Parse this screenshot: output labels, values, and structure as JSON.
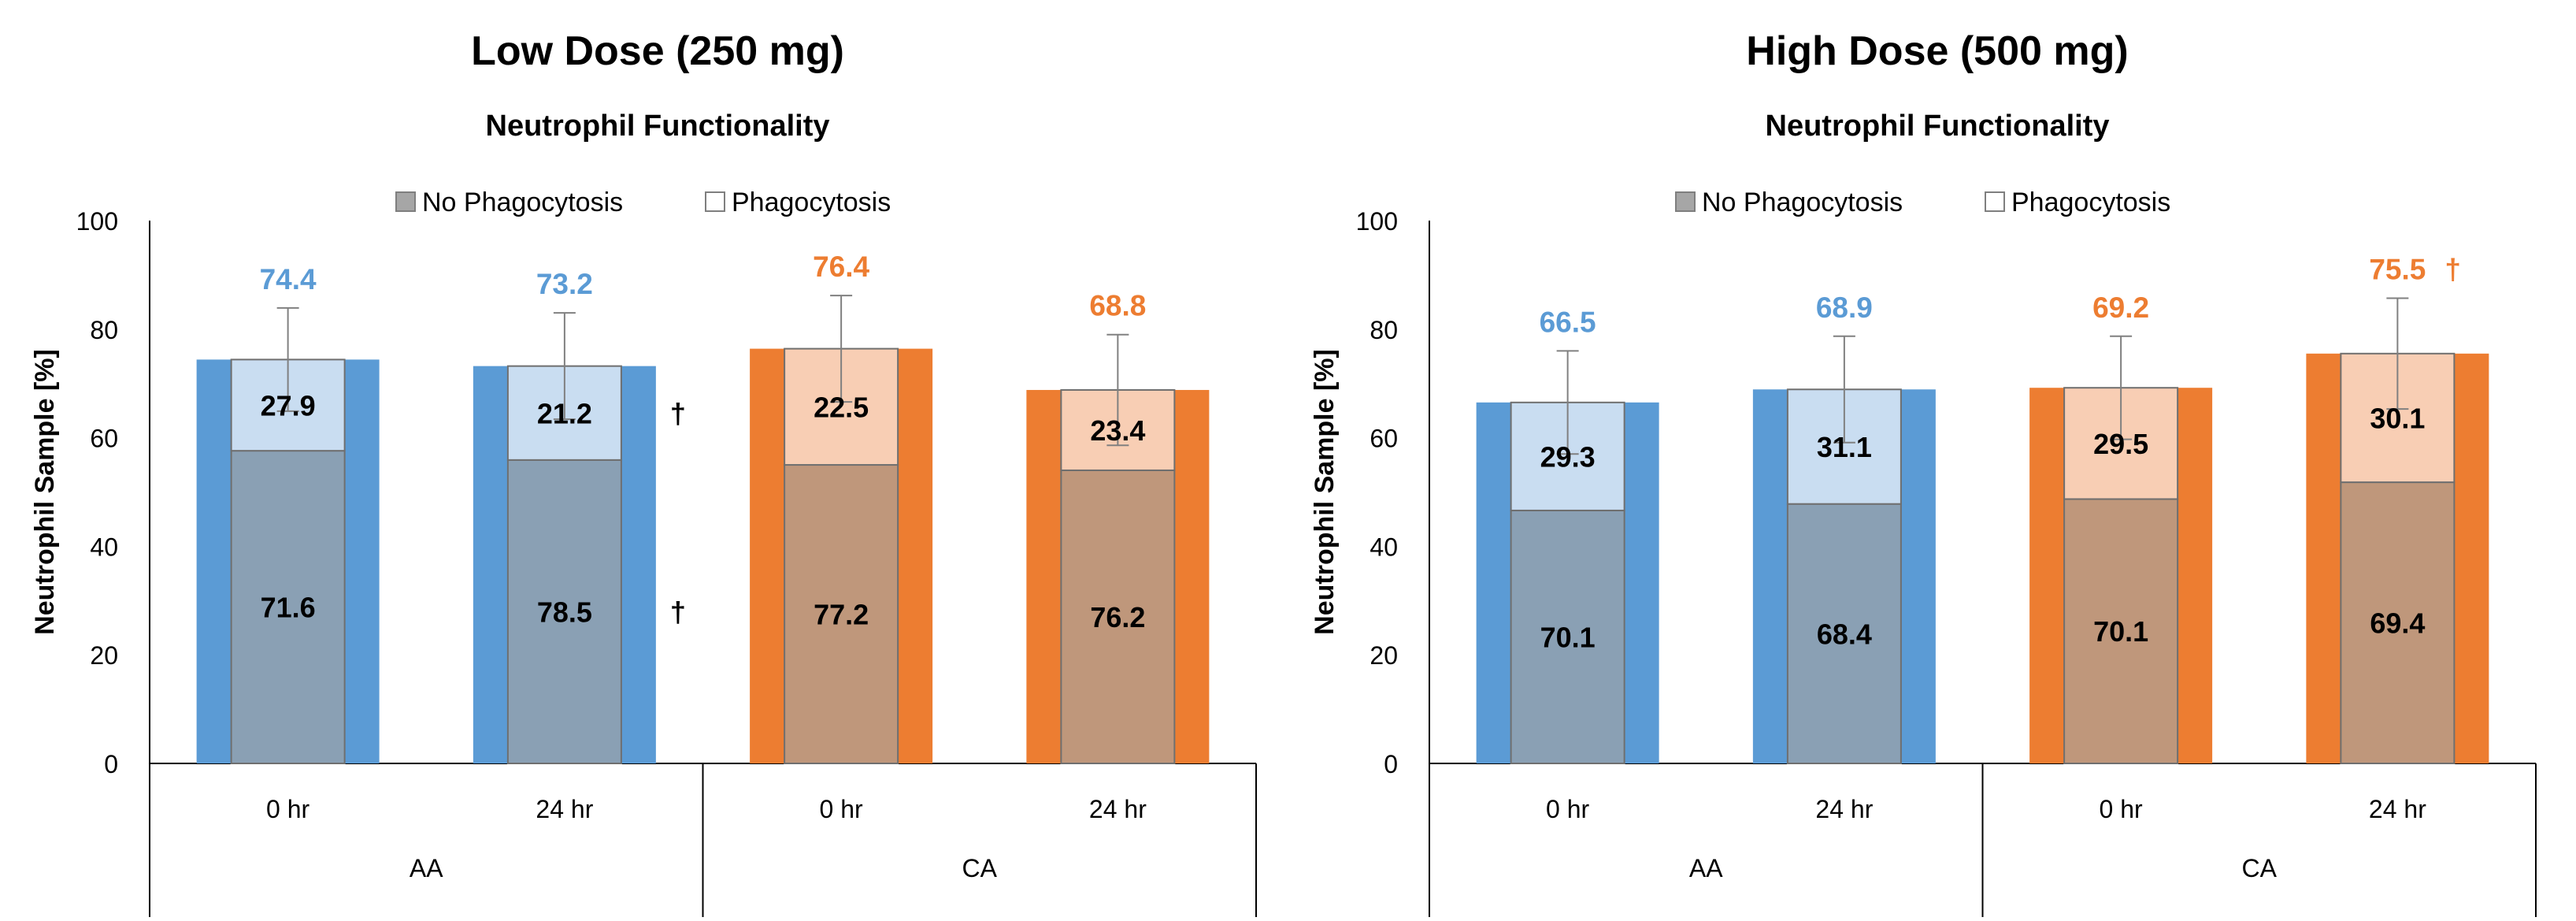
{
  "colors": {
    "aa_outer": "#5b9bd5",
    "aa_no_phago": "#8aa0b4",
    "aa_phago": "#c9ddf1",
    "ca_outer": "#ed7d31",
    "ca_no_phago": "#bf977b",
    "ca_phago": "#f8ceb4",
    "aa_label": "#5b9bd5",
    "ca_label": "#ed7d31"
  },
  "chart_data": [
    {
      "type": "bar",
      "title": "Low Dose (250 mg)",
      "subtitle": "Neutrophil Functionality",
      "ylabel": "Neutrophil  Sample [%]",
      "ylim": [
        0,
        100
      ],
      "yticks": [
        0,
        20,
        40,
        60,
        80,
        100
      ],
      "legend": [
        "No Phagocytosis",
        "Phagocytosis"
      ],
      "groups": [
        {
          "label": "AA",
          "span": 2
        },
        {
          "label": "CA",
          "span": 2
        }
      ],
      "categories": [
        {
          "label": "0 hr",
          "group": "AA",
          "total": 74.4,
          "total_label": "74.4",
          "error": 9.5,
          "no_phagocytosis_height": 57.6,
          "phagocytosis_height": 16.8,
          "no_phagocytosis_label": "71.6",
          "phagocytosis_label": "27.9",
          "dagger_no": "",
          "dagger_phago": "",
          "dagger_total": ""
        },
        {
          "label": "24 hr",
          "group": "AA",
          "total": 73.2,
          "total_label": "73.2",
          "error": 9.8,
          "no_phagocytosis_height": 55.9,
          "phagocytosis_height": 17.3,
          "no_phagocytosis_label": "78.5",
          "phagocytosis_label": "21.2",
          "dagger_no": "†",
          "dagger_phago": "†",
          "dagger_total": ""
        },
        {
          "label": "0 hr",
          "group": "CA",
          "total": 76.4,
          "total_label": "76.4",
          "error": 9.8,
          "no_phagocytosis_height": 55.0,
          "phagocytosis_height": 21.4,
          "no_phagocytosis_label": "77.2",
          "phagocytosis_label": "22.5",
          "dagger_no": "",
          "dagger_phago": "",
          "dagger_total": ""
        },
        {
          "label": "24 hr",
          "group": "CA",
          "total": 68.8,
          "total_label": "68.8",
          "error": 10.2,
          "no_phagocytosis_height": 54.0,
          "phagocytosis_height": 14.8,
          "no_phagocytosis_label": "76.2",
          "phagocytosis_label": "23.4",
          "dagger_no": "",
          "dagger_phago": "",
          "dagger_total": ""
        }
      ]
    },
    {
      "type": "bar",
      "title": "High Dose (500 mg)",
      "subtitle": "Neutrophil Functionality",
      "ylabel": "Neutrophil  Sample [%]",
      "ylim": [
        0,
        100
      ],
      "yticks": [
        0,
        20,
        40,
        60,
        80,
        100
      ],
      "legend": [
        "No Phagocytosis",
        "Phagocytosis"
      ],
      "groups": [
        {
          "label": "AA",
          "span": 2
        },
        {
          "label": "CA",
          "span": 2
        }
      ],
      "categories": [
        {
          "label": "0 hr",
          "group": "AA",
          "total": 66.5,
          "total_label": "66.5",
          "error": 9.5,
          "no_phagocytosis_height": 46.6,
          "phagocytosis_height": 19.9,
          "no_phagocytosis_label": "70.1",
          "phagocytosis_label": "29.3",
          "dagger_no": "",
          "dagger_phago": "",
          "dagger_total": ""
        },
        {
          "label": "24 hr",
          "group": "AA",
          "total": 68.9,
          "total_label": "68.9",
          "error": 9.8,
          "no_phagocytosis_height": 47.8,
          "phagocytosis_height": 21.1,
          "no_phagocytosis_label": "68.4",
          "phagocytosis_label": "31.1",
          "dagger_no": "",
          "dagger_phago": "",
          "dagger_total": ""
        },
        {
          "label": "0 hr",
          "group": "CA",
          "total": 69.2,
          "total_label": "69.2",
          "error": 9.5,
          "no_phagocytosis_height": 48.7,
          "phagocytosis_height": 20.5,
          "no_phagocytosis_label": "70.1",
          "phagocytosis_label": "29.5",
          "dagger_no": "",
          "dagger_phago": "",
          "dagger_total": ""
        },
        {
          "label": "24 hr",
          "group": "CA",
          "total": 75.5,
          "total_label": "75.5",
          "error": 10.2,
          "no_phagocytosis_height": 51.8,
          "phagocytosis_height": 23.7,
          "no_phagocytosis_label": "69.4",
          "phagocytosis_label": "30.1",
          "dagger_no": "",
          "dagger_phago": "",
          "dagger_total": "†"
        }
      ]
    }
  ]
}
